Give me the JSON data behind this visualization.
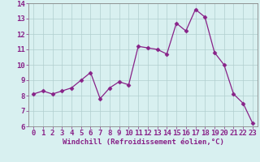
{
  "x": [
    0,
    1,
    2,
    3,
    4,
    5,
    6,
    7,
    8,
    9,
    10,
    11,
    12,
    13,
    14,
    15,
    16,
    17,
    18,
    19,
    20,
    21,
    22,
    23
  ],
  "y": [
    8.1,
    8.3,
    8.1,
    8.3,
    8.5,
    9.0,
    9.5,
    7.8,
    8.5,
    8.9,
    8.7,
    11.2,
    11.1,
    11.0,
    10.7,
    12.7,
    12.2,
    13.6,
    13.1,
    10.8,
    10.0,
    8.1,
    7.5,
    6.2
  ],
  "line_color": "#882288",
  "marker": "D",
  "marker_size": 2.5,
  "bg_color": "#d8f0f0",
  "grid_color": "#b0cece",
  "xlabel": "Windchill (Refroidissement éolien,°C)",
  "xlabel_fontsize": 6.5,
  "tick_fontsize": 6.5,
  "ylim": [
    6,
    14
  ],
  "xlim": [
    -0.5,
    23.5
  ],
  "yticks": [
    6,
    7,
    8,
    9,
    10,
    11,
    12,
    13,
    14
  ],
  "xticks": [
    0,
    1,
    2,
    3,
    4,
    5,
    6,
    7,
    8,
    9,
    10,
    11,
    12,
    13,
    14,
    15,
    16,
    17,
    18,
    19,
    20,
    21,
    22,
    23
  ],
  "axes_label_color": "#882288",
  "spine_color": "#888888"
}
